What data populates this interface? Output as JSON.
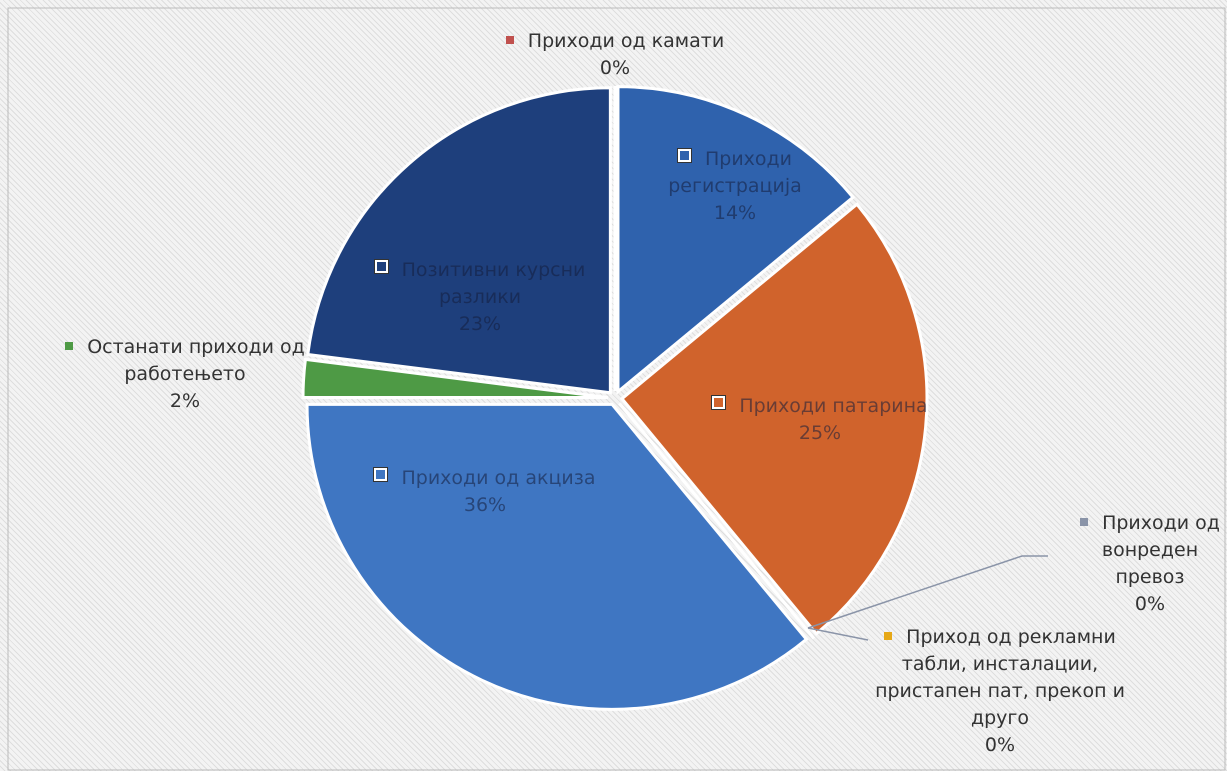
{
  "chart_data": {
    "type": "pie",
    "categories": [
      "Приходи од камати",
      "Приходи регистрација",
      "Приходи патарина",
      "Приходи од вонреден превоз",
      "Приход од рекламни табли, инсталации, пристапен пат, прекоп и друго",
      "Приходи од акциза",
      "Останати приходи од работењето",
      "Позитивни курсни разлики"
    ],
    "values": [
      0,
      14,
      25,
      0,
      0,
      36,
      2,
      23
    ],
    "value_labels": [
      "0%",
      "14%",
      "25%",
      "0%",
      "0%",
      "36%",
      "2%",
      "23%"
    ],
    "colors": [
      "#c0504d",
      "#2f62ad",
      "#d0632c",
      "#8a94a8",
      "#e6a817",
      "#3f76c2",
      "#4e9a45",
      "#1e3f7c"
    ]
  }
}
